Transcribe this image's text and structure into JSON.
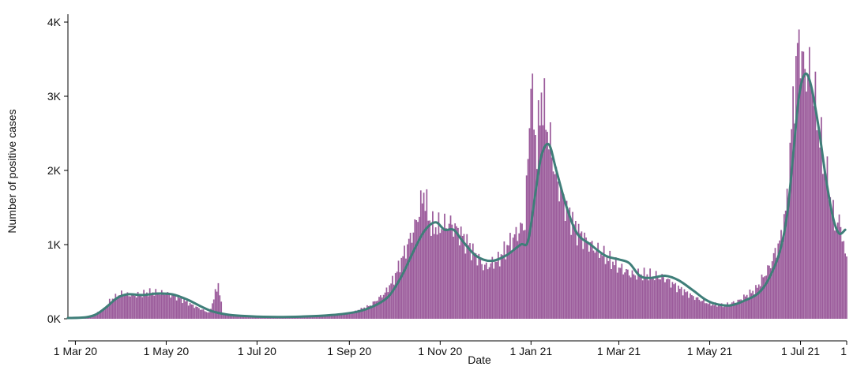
{
  "chart_data": {
    "type": "bar",
    "xlabel": "Date",
    "ylabel": "Number of positive cases",
    "x_range": [
      "2020-02-25",
      "2021-08-01"
    ],
    "ylim": [
      0,
      4000
    ],
    "y_ticks": [
      {
        "value": 0,
        "label": "0K"
      },
      {
        "value": 1000,
        "label": "1K"
      },
      {
        "value": 2000,
        "label": "2K"
      },
      {
        "value": 3000,
        "label": "3K"
      },
      {
        "value": 4000,
        "label": "4K"
      }
    ],
    "x_ticks": [
      {
        "date": "2020-03-01",
        "label": "1 Mar 20"
      },
      {
        "date": "2020-05-01",
        "label": "1 May 20"
      },
      {
        "date": "2020-07-01",
        "label": "1 Jul 20"
      },
      {
        "date": "2020-09-01",
        "label": "1 Sep 20"
      },
      {
        "date": "2020-11-01",
        "label": "1 Nov 20"
      },
      {
        "date": "2021-01-01",
        "label": "1 Jan 21"
      },
      {
        "date": "2021-03-01",
        "label": "1 Mar 21"
      },
      {
        "date": "2021-05-01",
        "label": "1 May 21"
      },
      {
        "date": "2021-07-01",
        "label": "1 Jul 21"
      },
      {
        "date": "2021-08-01",
        "label": "1"
      }
    ],
    "grid": false,
    "legend": "none",
    "bar_color": "#9b5b9b",
    "line_color": "#3f7e79",
    "series": [
      {
        "type": "bar",
        "points": [
          [
            "2020-02-25",
            5
          ],
          [
            "2020-03-05",
            15
          ],
          [
            "2020-03-12",
            40
          ],
          [
            "2020-03-20",
            130
          ],
          [
            "2020-03-25",
            260
          ],
          [
            "2020-04-01",
            340
          ],
          [
            "2020-04-10",
            320
          ],
          [
            "2020-04-20",
            360
          ],
          [
            "2020-05-01",
            350
          ],
          [
            "2020-05-10",
            280
          ],
          [
            "2020-05-20",
            170
          ],
          [
            "2020-05-30",
            80
          ],
          [
            "2020-06-05",
            480
          ],
          [
            "2020-06-08",
            60
          ],
          [
            "2020-06-15",
            40
          ],
          [
            "2020-07-01",
            25
          ],
          [
            "2020-07-20",
            20
          ],
          [
            "2020-08-10",
            30
          ],
          [
            "2020-08-25",
            50
          ],
          [
            "2020-09-05",
            100
          ],
          [
            "2020-09-15",
            180
          ],
          [
            "2020-09-25",
            350
          ],
          [
            "2020-10-01",
            550
          ],
          [
            "2020-10-08",
            900
          ],
          [
            "2020-10-15",
            1250
          ],
          [
            "2020-10-21",
            1700
          ],
          [
            "2020-10-26",
            1250
          ],
          [
            "2020-11-01",
            1250
          ],
          [
            "2020-11-08",
            1300
          ],
          [
            "2020-11-15",
            1150
          ],
          [
            "2020-11-22",
            950
          ],
          [
            "2020-12-01",
            700
          ],
          [
            "2020-12-10",
            800
          ],
          [
            "2020-12-20",
            1100
          ],
          [
            "2020-12-28",
            1300
          ],
          [
            "2021-01-01",
            3100
          ],
          [
            "2021-01-05",
            2300
          ],
          [
            "2021-01-08",
            3050
          ],
          [
            "2021-01-12",
            2600
          ],
          [
            "2021-01-18",
            1900
          ],
          [
            "2021-01-25",
            1500
          ],
          [
            "2021-02-01",
            1200
          ],
          [
            "2021-02-10",
            1000
          ],
          [
            "2021-02-20",
            850
          ],
          [
            "2021-03-01",
            700
          ],
          [
            "2021-03-10",
            600
          ],
          [
            "2021-03-20",
            600
          ],
          [
            "2021-04-01",
            550
          ],
          [
            "2021-04-10",
            420
          ],
          [
            "2021-04-20",
            300
          ],
          [
            "2021-05-01",
            200
          ],
          [
            "2021-05-10",
            180
          ],
          [
            "2021-05-20",
            240
          ],
          [
            "2021-06-01",
            400
          ],
          [
            "2021-06-10",
            700
          ],
          [
            "2021-06-18",
            1100
          ],
          [
            "2021-06-22",
            1600
          ],
          [
            "2021-06-26",
            2900
          ],
          [
            "2021-06-30",
            3900
          ],
          [
            "2021-07-03",
            3400
          ],
          [
            "2021-07-08",
            3300
          ],
          [
            "2021-07-12",
            2800
          ],
          [
            "2021-07-16",
            2200
          ],
          [
            "2021-07-20",
            1800
          ],
          [
            "2021-07-24",
            1300
          ],
          [
            "2021-07-28",
            1300
          ],
          [
            "2021-07-31",
            850
          ]
        ]
      },
      {
        "type": "line",
        "points": [
          [
            "2020-02-25",
            10
          ],
          [
            "2020-03-08",
            20
          ],
          [
            "2020-03-15",
            60
          ],
          [
            "2020-03-22",
            160
          ],
          [
            "2020-03-29",
            280
          ],
          [
            "2020-04-05",
            330
          ],
          [
            "2020-04-15",
            320
          ],
          [
            "2020-04-25",
            340
          ],
          [
            "2020-05-05",
            330
          ],
          [
            "2020-05-15",
            260
          ],
          [
            "2020-05-25",
            160
          ],
          [
            "2020-06-01",
            100
          ],
          [
            "2020-06-10",
            60
          ],
          [
            "2020-06-20",
            40
          ],
          [
            "2020-07-10",
            25
          ],
          [
            "2020-08-01",
            30
          ],
          [
            "2020-08-20",
            50
          ],
          [
            "2020-09-05",
            90
          ],
          [
            "2020-09-15",
            150
          ],
          [
            "2020-09-25",
            260
          ],
          [
            "2020-10-01",
            400
          ],
          [
            "2020-10-08",
            650
          ],
          [
            "2020-10-15",
            950
          ],
          [
            "2020-10-22",
            1200
          ],
          [
            "2020-10-29",
            1300
          ],
          [
            "2020-11-04",
            1200
          ],
          [
            "2020-11-10",
            1200
          ],
          [
            "2020-11-16",
            1050
          ],
          [
            "2020-11-25",
            850
          ],
          [
            "2020-12-05",
            780
          ],
          [
            "2020-12-15",
            850
          ],
          [
            "2020-12-25",
            1000
          ],
          [
            "2020-12-30",
            1050
          ],
          [
            "2021-01-04",
            1700
          ],
          [
            "2021-01-08",
            2200
          ],
          [
            "2021-01-13",
            2350
          ],
          [
            "2021-01-18",
            2000
          ],
          [
            "2021-01-25",
            1500
          ],
          [
            "2021-02-01",
            1150
          ],
          [
            "2021-02-10",
            1000
          ],
          [
            "2021-02-20",
            850
          ],
          [
            "2021-03-01",
            800
          ],
          [
            "2021-03-08",
            750
          ],
          [
            "2021-03-15",
            580
          ],
          [
            "2021-03-22",
            550
          ],
          [
            "2021-04-01",
            580
          ],
          [
            "2021-04-10",
            520
          ],
          [
            "2021-04-20",
            380
          ],
          [
            "2021-04-28",
            260
          ],
          [
            "2021-05-05",
            200
          ],
          [
            "2021-05-15",
            180
          ],
          [
            "2021-05-25",
            250
          ],
          [
            "2021-06-03",
            350
          ],
          [
            "2021-06-10",
            550
          ],
          [
            "2021-06-17",
            900
          ],
          [
            "2021-06-22",
            1400
          ],
          [
            "2021-06-26",
            2200
          ],
          [
            "2021-06-30",
            3000
          ],
          [
            "2021-07-04",
            3300
          ],
          [
            "2021-07-08",
            3150
          ],
          [
            "2021-07-13",
            2600
          ],
          [
            "2021-07-18",
            1900
          ],
          [
            "2021-07-23",
            1350
          ],
          [
            "2021-07-27",
            1150
          ],
          [
            "2021-07-31",
            1200
          ]
        ]
      }
    ]
  }
}
